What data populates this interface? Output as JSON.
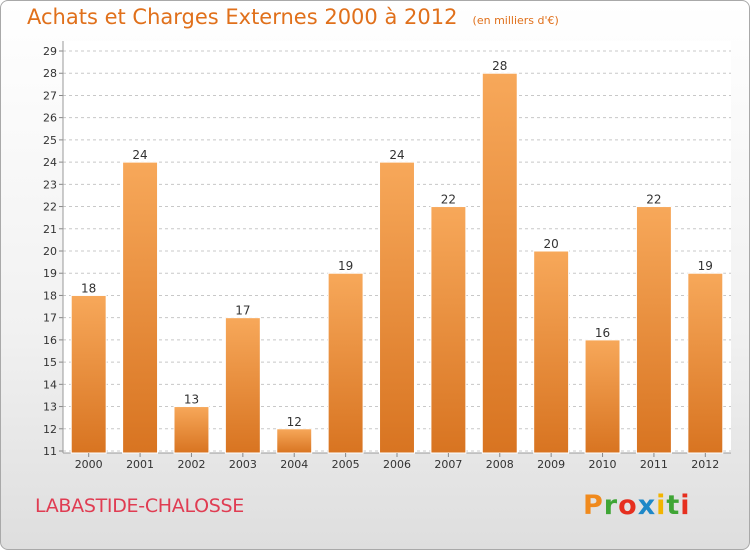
{
  "header": {
    "title": "Achats et Charges Externes 2000 à 2012",
    "unit": "(en milliers d'€)"
  },
  "footer": {
    "commune": "LABASTIDE-CHALOSSE",
    "logo_text": "Proxiti",
    "logo_colors": [
      "#f08a1d",
      "#3fa535",
      "#e62f1f",
      "#1e88c8",
      "#f3b400",
      "#3fa535",
      "#e62f1f"
    ]
  },
  "colors": {
    "bar_light": "#f7a85a",
    "bar_dark": "#d87421",
    "grid": "#c8c8c8",
    "axis_text": "#333333"
  },
  "chart_data": {
    "type": "bar",
    "categories": [
      "2000",
      "2001",
      "2002",
      "2003",
      "2004",
      "2005",
      "2006",
      "2007",
      "2008",
      "2009",
      "2010",
      "2011",
      "2012"
    ],
    "values": [
      18,
      24,
      13,
      17,
      12,
      19,
      24,
      22,
      28,
      20,
      16,
      22,
      19
    ],
    "ylim": [
      11,
      29
    ],
    "yticks": [
      11,
      12,
      13,
      14,
      15,
      16,
      17,
      18,
      19,
      20,
      21,
      22,
      23,
      24,
      25,
      26,
      27,
      28,
      29
    ],
    "grid": true,
    "data_labels": true
  }
}
